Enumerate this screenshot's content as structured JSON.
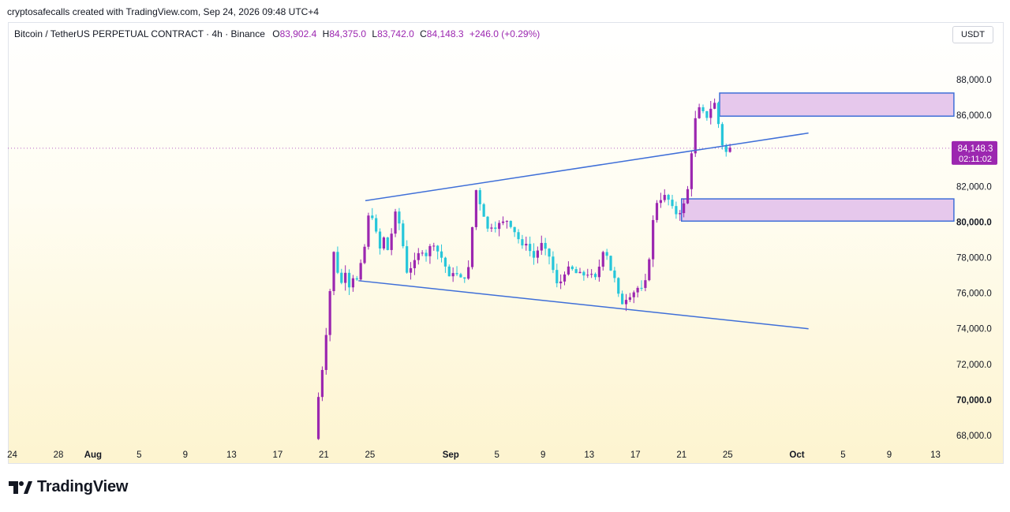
{
  "header": {
    "credit": "cryptosafecalls created with TradingView.com, Sep 24, 2026 09:48 UTC+4"
  },
  "legend": {
    "symbol": "Bitcoin / TetherUS PERPETUAL CONTRACT · 4h · Binance",
    "o_label": "O",
    "o_value": "83,902.4",
    "h_label": "H",
    "h_value": "84,375.0",
    "l_label": "L",
    "l_value": "83,742.0",
    "c_label": "C",
    "c_value": "84,148.3",
    "change": "+246.0 (+0.29%)"
  },
  "currency": "USDT",
  "price_badge": {
    "price": "84,148.3",
    "countdown": "02:11:02"
  },
  "footer": {
    "brand": "TradingView"
  },
  "colors": {
    "up": "#9c27b0",
    "down": "#26c6da",
    "line": "#3f6fd8",
    "zone_fill": "#e6c8ec",
    "badge": "#9c27b0"
  },
  "chart_data": {
    "type": "candlestick",
    "ylim": [
      67500,
      89200
    ],
    "y_ticks": [
      {
        "value": 68000,
        "label": "68,000.0"
      },
      {
        "value": 70000,
        "label": "70,000.0"
      },
      {
        "value": 72000,
        "label": "72,000.0"
      },
      {
        "value": 74000,
        "label": "74,000.0"
      },
      {
        "value": 76000,
        "label": "76,000.0"
      },
      {
        "value": 78000,
        "label": "78,000.0"
      },
      {
        "value": 80000,
        "label": "80,000.0"
      },
      {
        "value": 82000,
        "label": "82,000.0"
      },
      {
        "value": 84000,
        "label": "84,000.0"
      },
      {
        "value": 86000,
        "label": "86,000.0"
      },
      {
        "value": 88000,
        "label": "88,000.0"
      }
    ],
    "x_ticks": [
      {
        "day": -3,
        "label": "24"
      },
      {
        "day": 1,
        "label": "28"
      },
      {
        "day": 4,
        "label": "Aug"
      },
      {
        "day": 8,
        "label": "5"
      },
      {
        "day": 12,
        "label": "9"
      },
      {
        "day": 16,
        "label": "13"
      },
      {
        "day": 20,
        "label": "17"
      },
      {
        "day": 24,
        "label": "21"
      },
      {
        "day": 28,
        "label": "25"
      },
      {
        "day": 35,
        "label": "Sep"
      },
      {
        "day": 39,
        "label": "5"
      },
      {
        "day": 43,
        "label": "9"
      },
      {
        "day": 47,
        "label": "13"
      },
      {
        "day": 51,
        "label": "17"
      },
      {
        "day": 55,
        "label": "21"
      },
      {
        "day": 59,
        "label": "25"
      },
      {
        "day": 65,
        "label": "Oct"
      },
      {
        "day": 69,
        "label": "5"
      },
      {
        "day": 73,
        "label": "9"
      },
      {
        "day": 77,
        "label": "13"
      }
    ],
    "x_origin": "Jul 28",
    "last_price": 84148.3,
    "trendlines": [
      {
        "x1": 27.6,
        "y1": 81200,
        "x2": 66,
        "y2": 85000
      },
      {
        "x1": 27,
        "y1": 76700,
        "x2": 66,
        "y2": 74000
      }
    ],
    "zones": [
      {
        "x1": 58.3,
        "x2": 78.6,
        "y_low": 85950,
        "y_high": 87250
      },
      {
        "x1": 55,
        "x2": 78.6,
        "y_low": 80050,
        "y_high": 81300
      }
    ],
    "price_path": [
      [
        23.2,
        67800
      ],
      [
        23.5,
        70000
      ],
      [
        23.8,
        71500
      ],
      [
        24.0,
        72200
      ],
      [
        24.3,
        74500
      ],
      [
        24.6,
        76600
      ],
      [
        24.9,
        78500
      ],
      [
        25.2,
        77200
      ],
      [
        25.5,
        76500
      ],
      [
        25.9,
        77300
      ],
      [
        26.2,
        76400
      ],
      [
        26.6,
        77000
      ],
      [
        26.9,
        76700
      ],
      [
        27.2,
        77600
      ],
      [
        27.6,
        78800
      ],
      [
        27.9,
        80500
      ],
      [
        28.2,
        80300
      ],
      [
        28.6,
        79200
      ],
      [
        28.9,
        78400
      ],
      [
        29.2,
        79100
      ],
      [
        29.6,
        78300
      ],
      [
        29.9,
        79500
      ],
      [
        30.2,
        80500
      ],
      [
        30.6,
        79800
      ],
      [
        30.9,
        78500
      ],
      [
        31.2,
        77200
      ],
      [
        31.6,
        77500
      ],
      [
        31.9,
        77800
      ],
      [
        32.2,
        78200
      ],
      [
        32.6,
        78400
      ],
      [
        32.9,
        78100
      ],
      [
        33.2,
        78600
      ],
      [
        33.6,
        78800
      ],
      [
        33.9,
        78300
      ],
      [
        34.2,
        78000
      ],
      [
        34.6,
        77400
      ],
      [
        34.9,
        76800
      ],
      [
        35.2,
        77200
      ],
      [
        35.6,
        77000
      ],
      [
        35.9,
        76800
      ],
      [
        36.2,
        76900
      ],
      [
        36.6,
        77500
      ],
      [
        36.9,
        80000
      ],
      [
        37.2,
        81800
      ],
      [
        37.6,
        80900
      ],
      [
        37.9,
        80300
      ],
      [
        38.2,
        79600
      ],
      [
        38.6,
        79800
      ],
      [
        38.9,
        79700
      ],
      [
        39.2,
        79900
      ],
      [
        39.6,
        80000
      ],
      [
        39.9,
        80100
      ],
      [
        40.2,
        79800
      ],
      [
        40.6,
        79400
      ],
      [
        40.9,
        79000
      ],
      [
        41.2,
        78600
      ],
      [
        41.6,
        78900
      ],
      [
        41.9,
        78300
      ],
      [
        42.2,
        78000
      ],
      [
        42.6,
        78500
      ],
      [
        42.9,
        78800
      ],
      [
        43.2,
        78400
      ],
      [
        43.6,
        78000
      ],
      [
        43.9,
        77200
      ],
      [
        44.2,
        76500
      ],
      [
        44.6,
        76700
      ],
      [
        44.9,
        77200
      ],
      [
        45.2,
        77400
      ],
      [
        45.6,
        77300
      ],
      [
        45.9,
        77100
      ],
      [
        46.2,
        77100
      ],
      [
        46.6,
        77000
      ],
      [
        46.9,
        77100
      ],
      [
        47.2,
        77000
      ],
      [
        47.6,
        76800
      ],
      [
        47.9,
        77600
      ],
      [
        48.2,
        78400
      ],
      [
        48.6,
        78100
      ],
      [
        48.9,
        77200
      ],
      [
        49.2,
        76800
      ],
      [
        49.6,
        75700
      ],
      [
        49.9,
        75400
      ],
      [
        50.2,
        75700
      ],
      [
        50.6,
        75900
      ],
      [
        50.9,
        76100
      ],
      [
        51.2,
        76300
      ],
      [
        51.6,
        76200
      ],
      [
        51.9,
        76700
      ],
      [
        52.2,
        78000
      ],
      [
        52.6,
        80500
      ],
      [
        52.9,
        81200
      ],
      [
        53.2,
        81300
      ],
      [
        53.6,
        81500
      ],
      [
        53.9,
        81200
      ],
      [
        54.2,
        80800
      ],
      [
        54.6,
        80400
      ],
      [
        54.9,
        80600
      ],
      [
        55.2,
        81000
      ],
      [
        55.6,
        82000
      ],
      [
        55.9,
        84200
      ],
      [
        56.2,
        85800
      ],
      [
        56.6,
        86500
      ],
      [
        56.9,
        86100
      ],
      [
        57.2,
        85900
      ],
      [
        57.6,
        86500
      ],
      [
        57.9,
        86700
      ],
      [
        58.2,
        85500
      ],
      [
        58.6,
        84100
      ],
      [
        58.9,
        83900
      ],
      [
        59.2,
        84148
      ]
    ],
    "candle_step": 0.3333,
    "vol_seed": 7
  }
}
